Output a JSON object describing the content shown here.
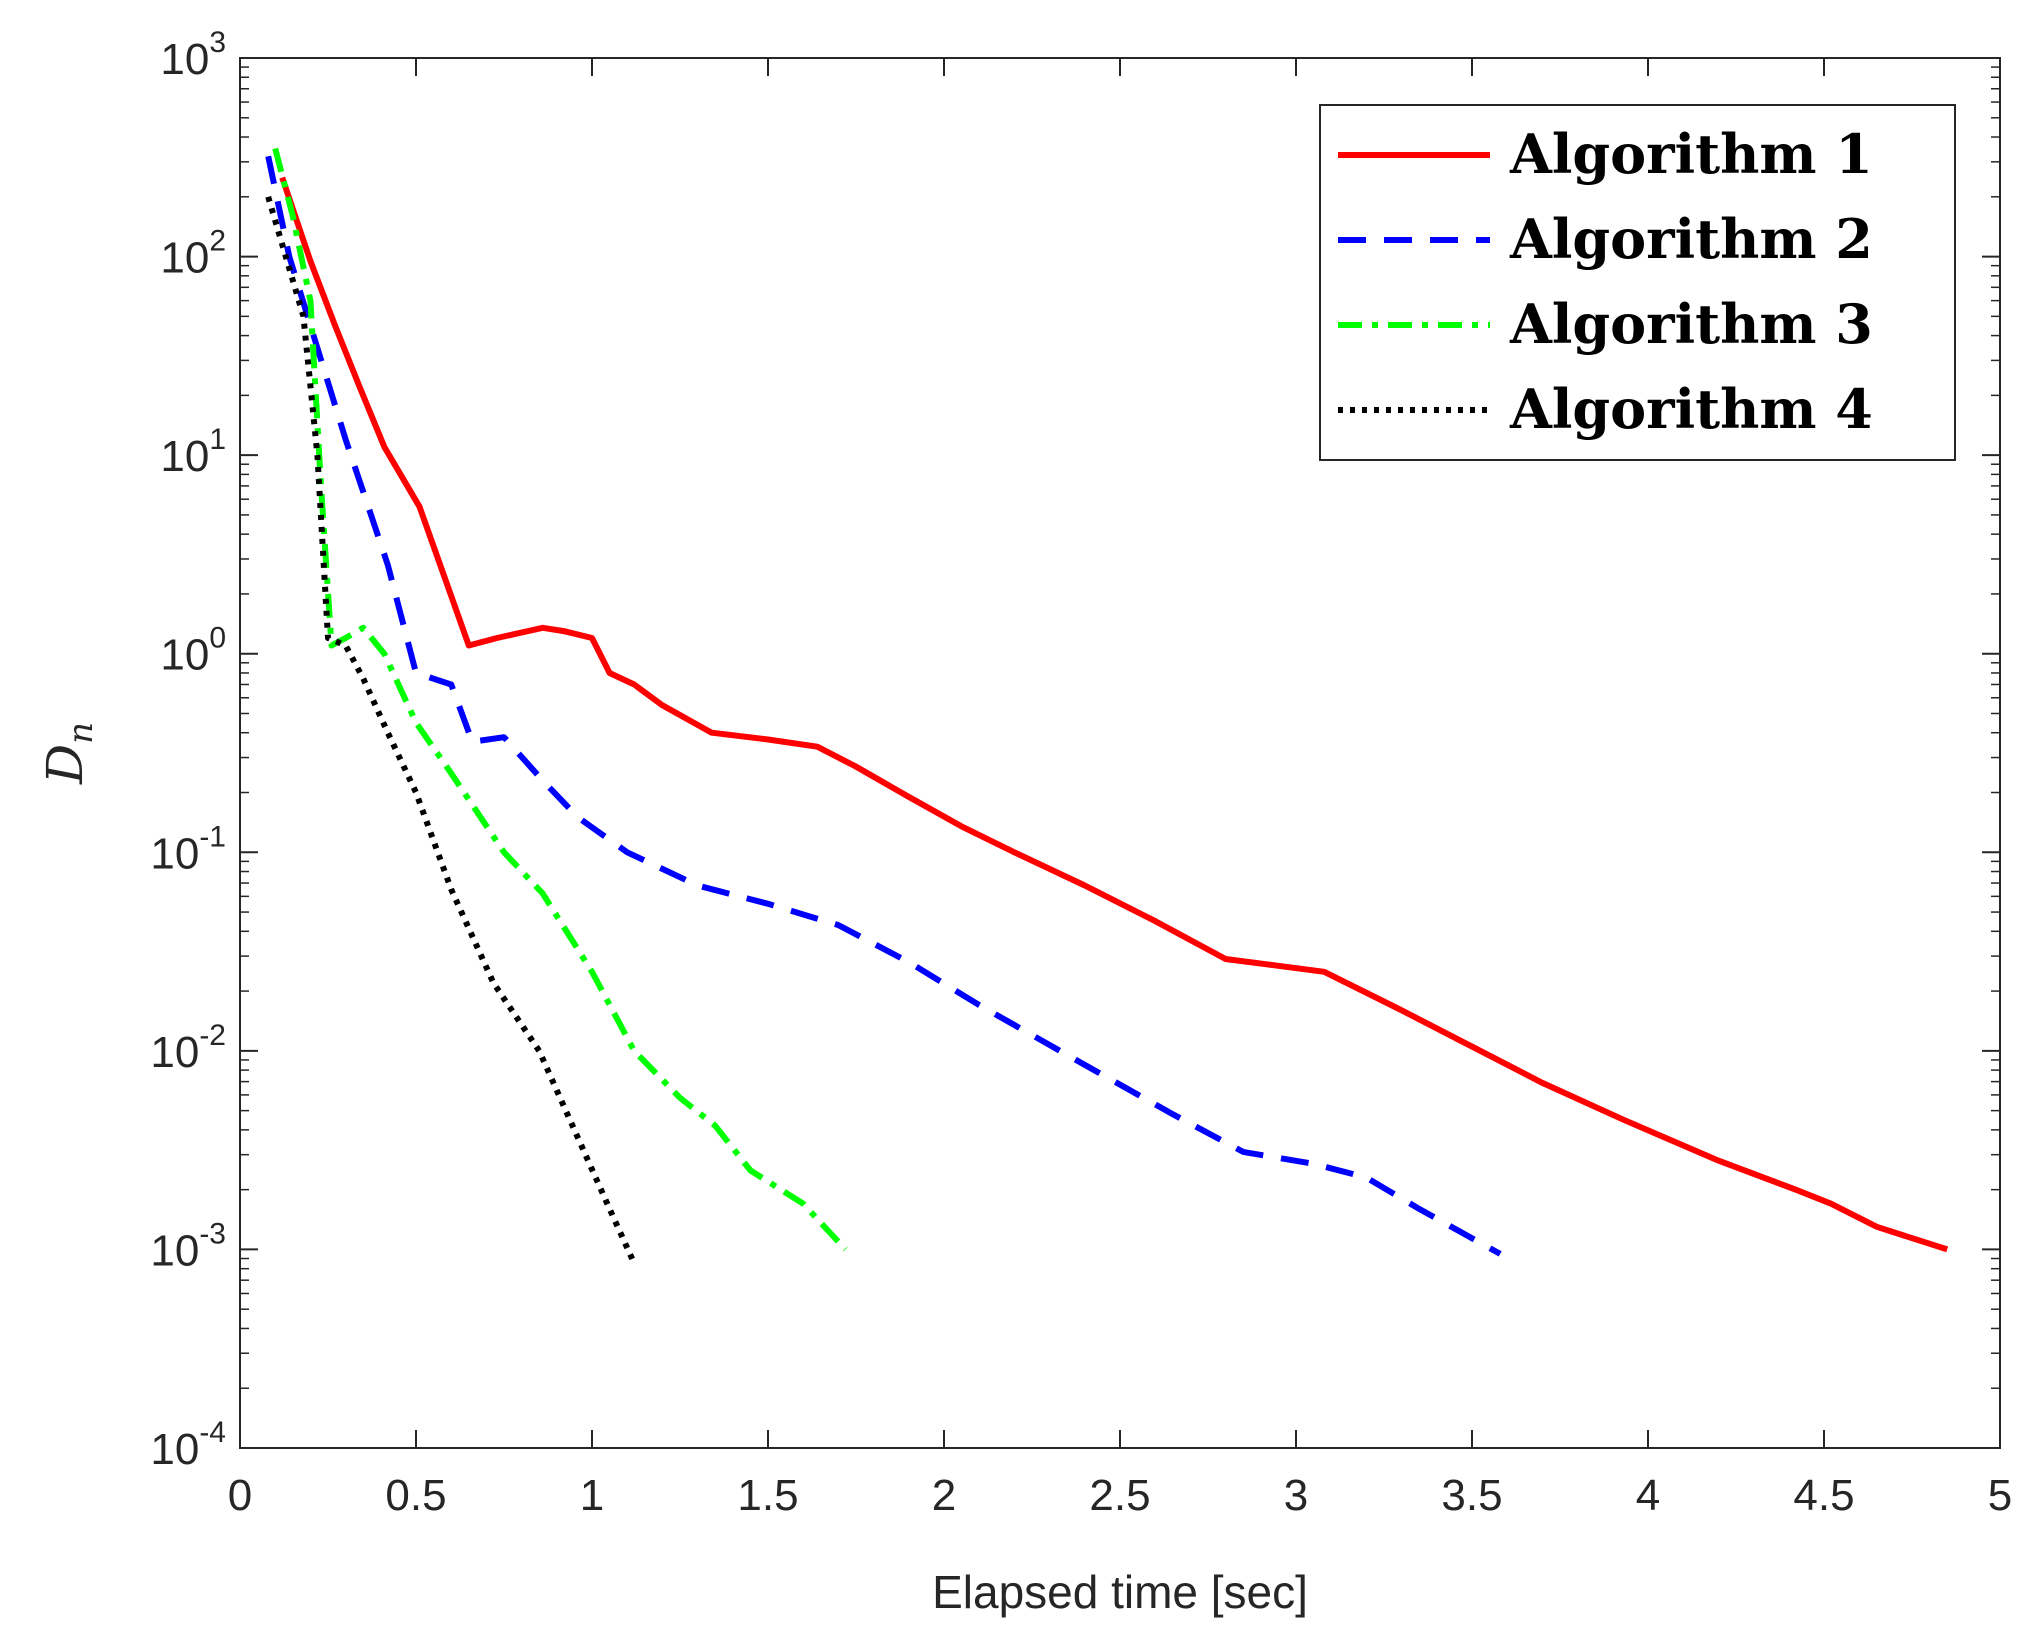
{
  "chart_data": {
    "type": "line",
    "title": "",
    "xlabel": "Elapsed time [sec]",
    "ylabel": {
      "main": "D",
      "sub": "n"
    },
    "xlim": [
      0,
      5
    ],
    "ylim": [
      0.0001,
      1000
    ],
    "yscale": "log",
    "grid": false,
    "legend_position": "top-right",
    "x_ticks": [
      "0",
      "0.5",
      "1",
      "1.5",
      "2",
      "2.5",
      "3",
      "3.5",
      "4",
      "4.5",
      "5"
    ],
    "y_ticks": [
      {
        "base": "10",
        "exp": "-4"
      },
      {
        "base": "10",
        "exp": "-3"
      },
      {
        "base": "10",
        "exp": "-2"
      },
      {
        "base": "10",
        "exp": "-1"
      },
      {
        "base": "10",
        "exp": "0"
      },
      {
        "base": "10",
        "exp": "1"
      },
      {
        "base": "10",
        "exp": "2"
      },
      {
        "base": "10",
        "exp": "3"
      }
    ],
    "series": [
      {
        "name": "Algorithm 1",
        "color": "#ff0000",
        "style": "solid",
        "x": [
          0.12,
          0.2,
          0.27,
          0.34,
          0.41,
          0.51,
          0.65,
          0.73,
          0.86,
          0.92,
          1.0,
          1.05,
          1.12,
          1.2,
          1.34,
          1.5,
          1.64,
          1.75,
          1.9,
          2.05,
          2.2,
          2.4,
          2.6,
          2.8,
          3.08,
          3.3,
          3.5,
          3.7,
          3.93,
          4.2,
          4.42,
          4.52,
          4.65,
          4.85
        ],
        "y": [
          250,
          95,
          45,
          22,
          11,
          5.5,
          1.1,
          1.2,
          1.35,
          1.3,
          1.2,
          0.8,
          0.7,
          0.55,
          0.4,
          0.37,
          0.34,
          0.27,
          0.19,
          0.135,
          0.1,
          0.068,
          0.045,
          0.029,
          0.025,
          0.016,
          0.0105,
          0.0069,
          0.0045,
          0.0028,
          0.002,
          0.0017,
          0.0013,
          0.001
        ]
      },
      {
        "name": "Algorithm 2",
        "color": "#0000ff",
        "style": "dashed",
        "x": [
          0.08,
          0.14,
          0.2,
          0.3,
          0.42,
          0.5,
          0.6,
          0.66,
          0.75,
          0.86,
          0.96,
          1.1,
          1.3,
          1.5,
          1.7,
          1.9,
          2.1,
          2.4,
          2.65,
          2.85,
          3.05,
          3.2,
          3.35,
          3.58
        ],
        "y": [
          320,
          100,
          45,
          12,
          2.8,
          0.8,
          0.7,
          0.36,
          0.38,
          0.23,
          0.15,
          0.1,
          0.068,
          0.055,
          0.043,
          0.028,
          0.017,
          0.0085,
          0.0048,
          0.0031,
          0.0027,
          0.0023,
          0.0016,
          0.00095
        ]
      },
      {
        "name": "Algorithm 3",
        "color": "#00ff00",
        "style": "dashdot",
        "x": [
          0.1,
          0.15,
          0.2,
          0.23,
          0.26,
          0.3,
          0.35,
          0.41,
          0.5,
          0.6,
          0.75,
          0.86,
          1.0,
          1.12,
          1.25,
          1.35,
          1.45,
          1.6,
          1.72
        ],
        "y": [
          350,
          160,
          60,
          7,
          1.1,
          1.2,
          1.35,
          1.0,
          0.45,
          0.25,
          0.1,
          0.062,
          0.025,
          0.01,
          0.0058,
          0.0042,
          0.0025,
          0.0017,
          0.001
        ]
      },
      {
        "name": "Algorithm 4",
        "color": "#000000",
        "style": "dotted",
        "x": [
          0.08,
          0.13,
          0.18,
          0.22,
          0.25,
          0.3,
          0.35,
          0.42,
          0.5,
          0.6,
          0.72,
          0.85,
          0.95,
          1.05,
          1.12
        ],
        "y": [
          200,
          100,
          50,
          10,
          1.2,
          1.1,
          0.75,
          0.4,
          0.2,
          0.065,
          0.022,
          0.01,
          0.004,
          0.0016,
          0.00085
        ]
      }
    ]
  }
}
